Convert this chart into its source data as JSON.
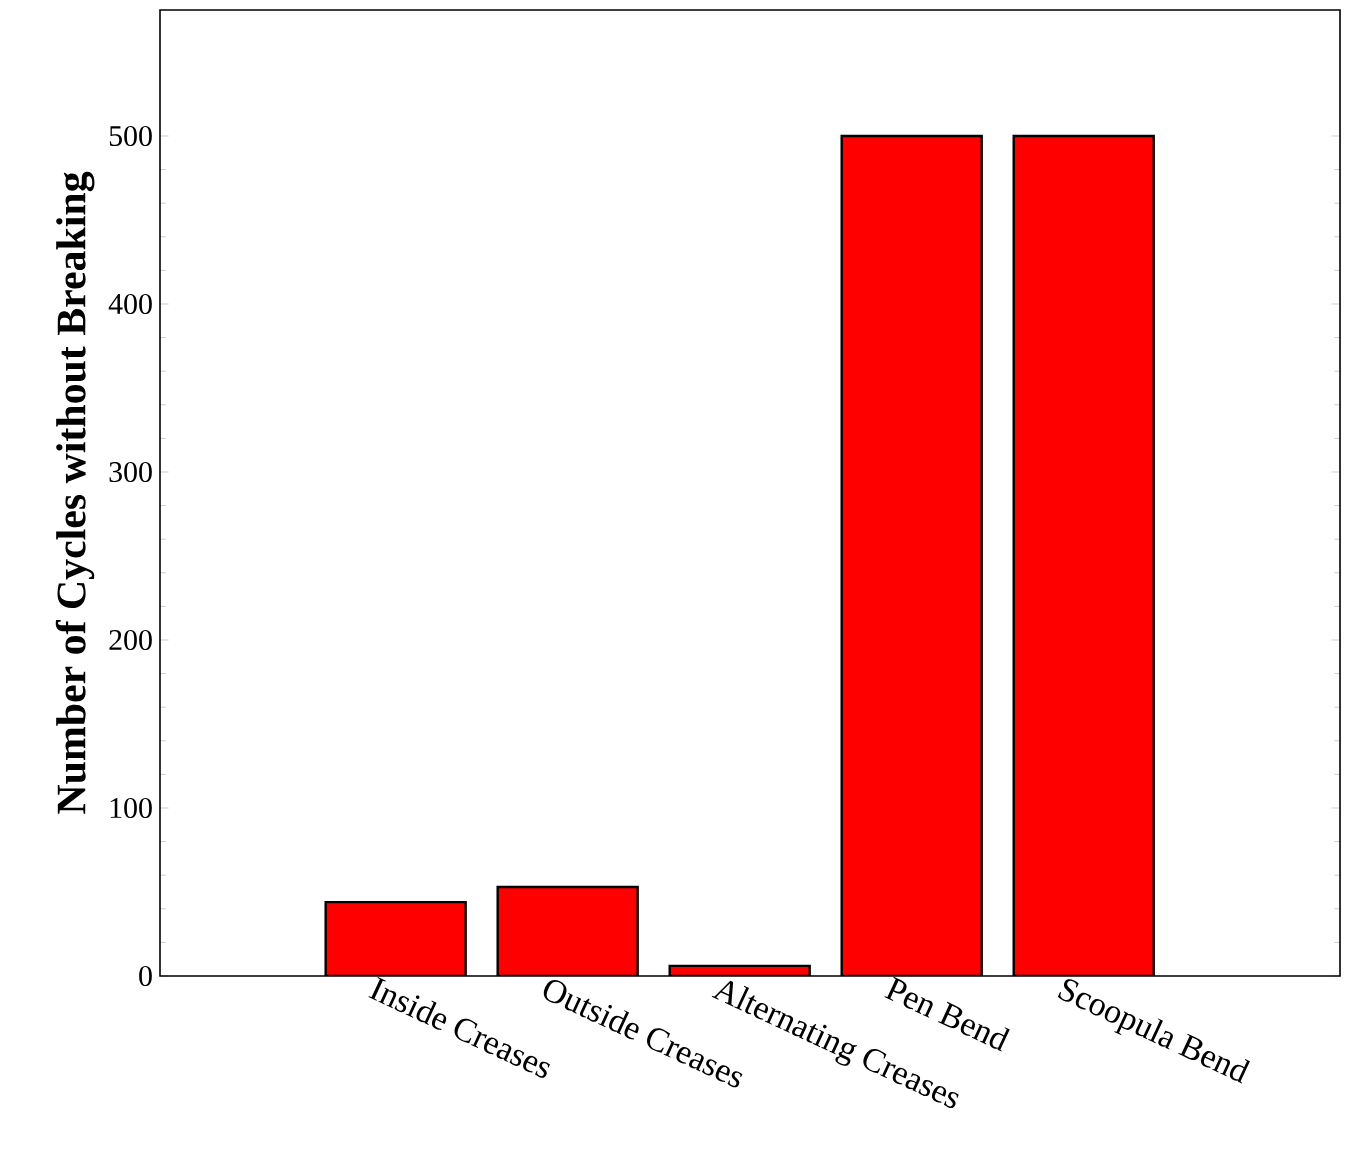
{
  "chart_data": {
    "type": "bar",
    "ylabel": "Number of Cycles without Breaking",
    "categories": [
      "Inside Creases",
      "Outside Creases",
      "Alternating Creases",
      "Pen Bend",
      "Scoopula Bend"
    ],
    "values": [
      44,
      53,
      6,
      500,
      500
    ],
    "color": "#ff0000",
    "ylim": [
      0,
      575
    ],
    "yticks": [
      0,
      100,
      200,
      300,
      400,
      500
    ],
    "grid": false
  }
}
